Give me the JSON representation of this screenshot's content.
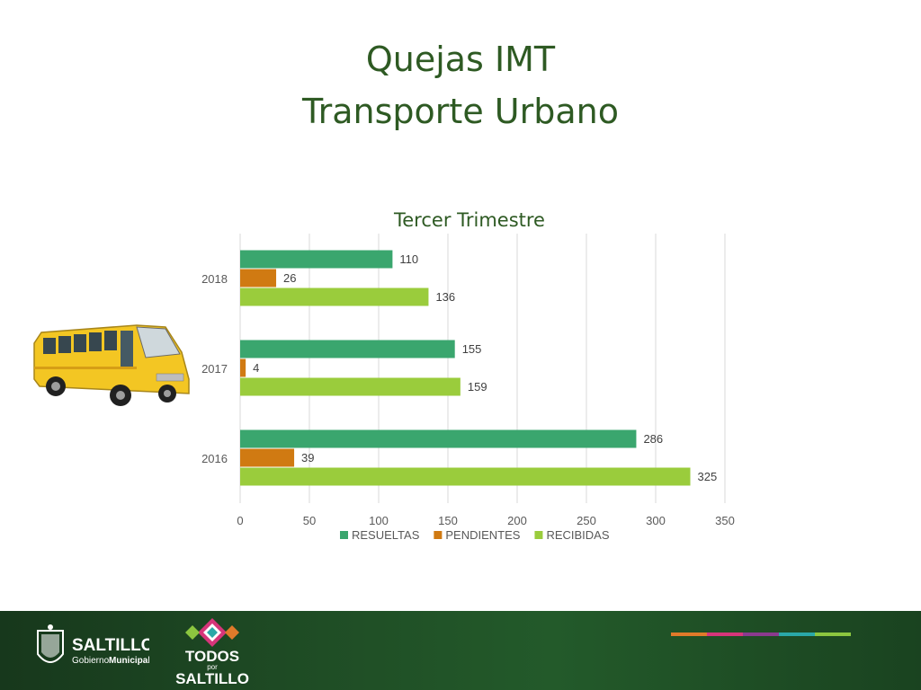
{
  "slide": {
    "title_line1": "Quejas IMT",
    "title_line2": "Transporte Urbano"
  },
  "chart_data": {
    "type": "bar",
    "orientation": "horizontal",
    "title": "Tercer Trimestre",
    "categories": [
      "2018",
      "2017",
      "2016"
    ],
    "series": [
      {
        "name": "RESUELTAS",
        "color": "#3aa66e",
        "values": [
          110,
          155,
          286
        ]
      },
      {
        "name": "PENDIENTES",
        "color": "#d07a12",
        "values": [
          26,
          4,
          39
        ]
      },
      {
        "name": "RECIBIDAS",
        "color": "#9acc3c",
        "values": [
          136,
          159,
          325
        ]
      }
    ],
    "xlim": [
      0,
      350
    ],
    "xticks": [
      0,
      50,
      100,
      150,
      200,
      250,
      300,
      350
    ],
    "grid": true,
    "legend": "bottom",
    "data_labels": true
  },
  "footer": {
    "brand1_title": "SALTILLO",
    "brand1_subtitle_a": "Gobierno",
    "brand1_subtitle_b": "Municipal",
    "brand2_line1": "TODOS",
    "brand2_line2": "por",
    "brand2_line3": "SALTILLO",
    "stripe_colors": [
      "#e07a2a",
      "#d6357a",
      "#8a3a8e",
      "#2aa8a8",
      "#8cc63f"
    ]
  },
  "icons": {
    "bus": "bus-illustration",
    "shield": "coat-of-arms-icon",
    "diamond": "sarape-diamond-icon"
  }
}
